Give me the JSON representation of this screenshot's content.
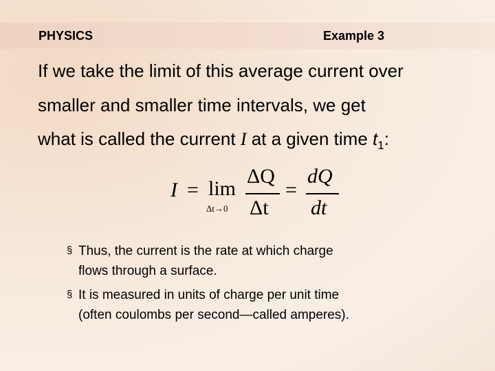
{
  "header": {
    "subject": "PHYSICS",
    "example": "Example 3"
  },
  "paragraph": {
    "lines": [
      "If we take the limit of this average current over",
      "smaller and smaller time intervals, we get"
    ],
    "last_line": [
      "what is called the current ",
      "I",
      " at a given time ",
      "t",
      "1",
      ":"
    ]
  },
  "equation": {
    "lhs": "I",
    "equals": [
      "=",
      "="
    ],
    "lim": "lim",
    "lim_sub": "Δt→0",
    "frac1_num": "ΔQ",
    "frac1_den": "Δt",
    "frac2_num": "dQ",
    "frac2_den": "dt"
  },
  "bullets": [
    {
      "marker": "§",
      "lines": [
        "Thus, the current is the rate at which charge",
        "flows through a surface."
      ]
    },
    {
      "marker": "§",
      "lines": [
        "It is measured in units of charge per unit time",
        "(often coulombs per second—called amperes)."
      ]
    }
  ]
}
